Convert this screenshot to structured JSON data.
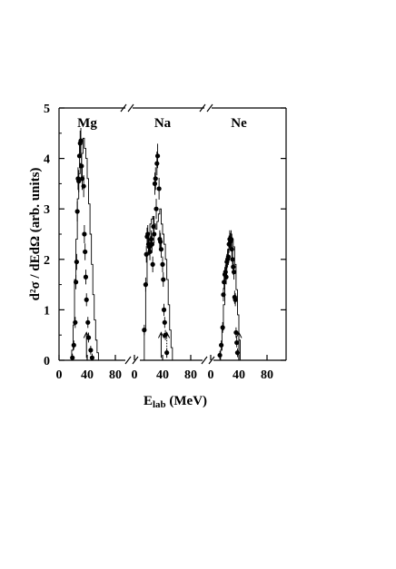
{
  "chart_data": {
    "type": "scatter",
    "ylabel": "d²σ / dEdΩ (arb. units)",
    "xlabel_main": "E",
    "xlabel_sub": "lab",
    "xlabel_unit": " (MeV)",
    "ylim": [
      0,
      5
    ],
    "yticks": [
      0,
      1,
      2,
      3,
      4,
      5
    ],
    "xticks": [
      0,
      40,
      80
    ],
    "panels": [
      {
        "name": "Mg",
        "xlim": [
          0,
          80
        ],
        "arrows": [
          {
            "x": 39,
            "style": "solid"
          }
        ],
        "histogram": [
          [
            15,
            0
          ],
          [
            18,
            0.2
          ],
          [
            20,
            0.7
          ],
          [
            22,
            1.6
          ],
          [
            24,
            2.4
          ],
          [
            26,
            3.2
          ],
          [
            28,
            3.7
          ],
          [
            30,
            3.9
          ],
          [
            32,
            4.1
          ],
          [
            34,
            4.4
          ],
          [
            36,
            4.2
          ],
          [
            38,
            4.0
          ],
          [
            40,
            3.6
          ],
          [
            42,
            3.1
          ],
          [
            44,
            2.5
          ],
          [
            46,
            1.9
          ],
          [
            48,
            1.3
          ],
          [
            50,
            0.8
          ],
          [
            52,
            0.4
          ],
          [
            54,
            0.15
          ],
          [
            56,
            0
          ]
        ],
        "points": [
          [
            19,
            0.05
          ],
          [
            21,
            0.3
          ],
          [
            23,
            0.75
          ],
          [
            24,
            1.55
          ],
          [
            25,
            1.95
          ],
          [
            26,
            2.95
          ],
          [
            27,
            3.6
          ],
          [
            28,
            3.55
          ],
          [
            29,
            4.05
          ],
          [
            30,
            4.3
          ],
          [
            31,
            4.35
          ],
          [
            32,
            3.85
          ],
          [
            33,
            3.6
          ],
          [
            35,
            3.45
          ],
          [
            36,
            2.5
          ],
          [
            37,
            2.15
          ],
          [
            38,
            1.65
          ],
          [
            39,
            1.2
          ],
          [
            41,
            0.75
          ],
          [
            42,
            0.45
          ],
          [
            45,
            0.2
          ],
          [
            47,
            0.05
          ]
        ]
      },
      {
        "name": "Na",
        "xlim": [
          0,
          80
        ],
        "arrows": [
          {
            "x": 38,
            "style": "solid"
          },
          {
            "x": 46,
            "style": "dotted"
          }
        ],
        "histogram": [
          [
            12,
            0
          ],
          [
            14,
            0.6
          ],
          [
            16,
            1.5
          ],
          [
            18,
            2.1
          ],
          [
            20,
            2.5
          ],
          [
            22,
            2.7
          ],
          [
            24,
            2.8
          ],
          [
            26,
            2.85
          ],
          [
            28,
            2.7
          ],
          [
            30,
            2.6
          ],
          [
            32,
            2.75
          ],
          [
            34,
            2.9
          ],
          [
            36,
            3.0
          ],
          [
            38,
            2.7
          ],
          [
            40,
            2.5
          ],
          [
            42,
            2.3
          ],
          [
            44,
            2.0
          ],
          [
            46,
            1.6
          ],
          [
            48,
            1.1
          ],
          [
            50,
            0.6
          ],
          [
            52,
            0.25
          ],
          [
            54,
            0
          ]
        ],
        "points": [
          [
            14,
            0.6
          ],
          [
            16,
            1.5
          ],
          [
            17,
            2.1
          ],
          [
            18,
            2.45
          ],
          [
            19,
            2.5
          ],
          [
            20,
            2.3
          ],
          [
            21,
            2.25
          ],
          [
            22,
            2.15
          ],
          [
            23,
            2.3
          ],
          [
            24,
            2.4
          ],
          [
            25,
            2.3
          ],
          [
            26,
            1.9
          ],
          [
            27,
            2.65
          ],
          [
            28,
            2.5
          ],
          [
            29,
            3.5
          ],
          [
            30,
            3.6
          ],
          [
            31,
            3.0
          ],
          [
            32,
            3.9
          ],
          [
            33,
            4.05
          ],
          [
            35,
            3.4
          ],
          [
            36,
            2.4
          ],
          [
            37,
            2.35
          ],
          [
            38,
            2.2
          ],
          [
            40,
            1.9
          ],
          [
            41,
            1.6
          ],
          [
            42,
            1.0
          ],
          [
            43,
            0.75
          ],
          [
            44,
            0.5
          ],
          [
            46,
            0.15
          ]
        ]
      },
      {
        "name": "Ne",
        "xlim": [
          0,
          80
        ],
        "arrows": [
          {
            "x": 40,
            "style": "solid"
          }
        ],
        "histogram": [
          [
            12,
            0
          ],
          [
            14,
            0.2
          ],
          [
            16,
            0.6
          ],
          [
            18,
            1.1
          ],
          [
            20,
            1.6
          ],
          [
            22,
            2.0
          ],
          [
            24,
            2.2
          ],
          [
            26,
            2.35
          ],
          [
            28,
            2.5
          ],
          [
            30,
            2.4
          ],
          [
            32,
            2.25
          ],
          [
            34,
            1.9
          ],
          [
            36,
            1.4
          ],
          [
            38,
            0.9
          ],
          [
            40,
            0.4
          ],
          [
            42,
            0
          ]
        ],
        "points": [
          [
            13,
            0.1
          ],
          [
            15,
            0.3
          ],
          [
            17,
            0.65
          ],
          [
            18,
            1.3
          ],
          [
            19,
            1.55
          ],
          [
            20,
            1.7
          ],
          [
            21,
            1.75
          ],
          [
            22,
            1.65
          ],
          [
            23,
            1.95
          ],
          [
            24,
            2.0
          ],
          [
            25,
            2.05
          ],
          [
            26,
            2.3
          ],
          [
            27,
            2.4
          ],
          [
            28,
            2.35
          ],
          [
            29,
            2.4
          ],
          [
            30,
            2.2
          ],
          [
            31,
            2.0
          ],
          [
            32,
            1.85
          ],
          [
            33,
            1.75
          ],
          [
            34,
            1.25
          ],
          [
            35,
            1.2
          ],
          [
            36,
            0.55
          ],
          [
            37,
            0.35
          ],
          [
            38,
            0.15
          ]
        ]
      }
    ]
  }
}
